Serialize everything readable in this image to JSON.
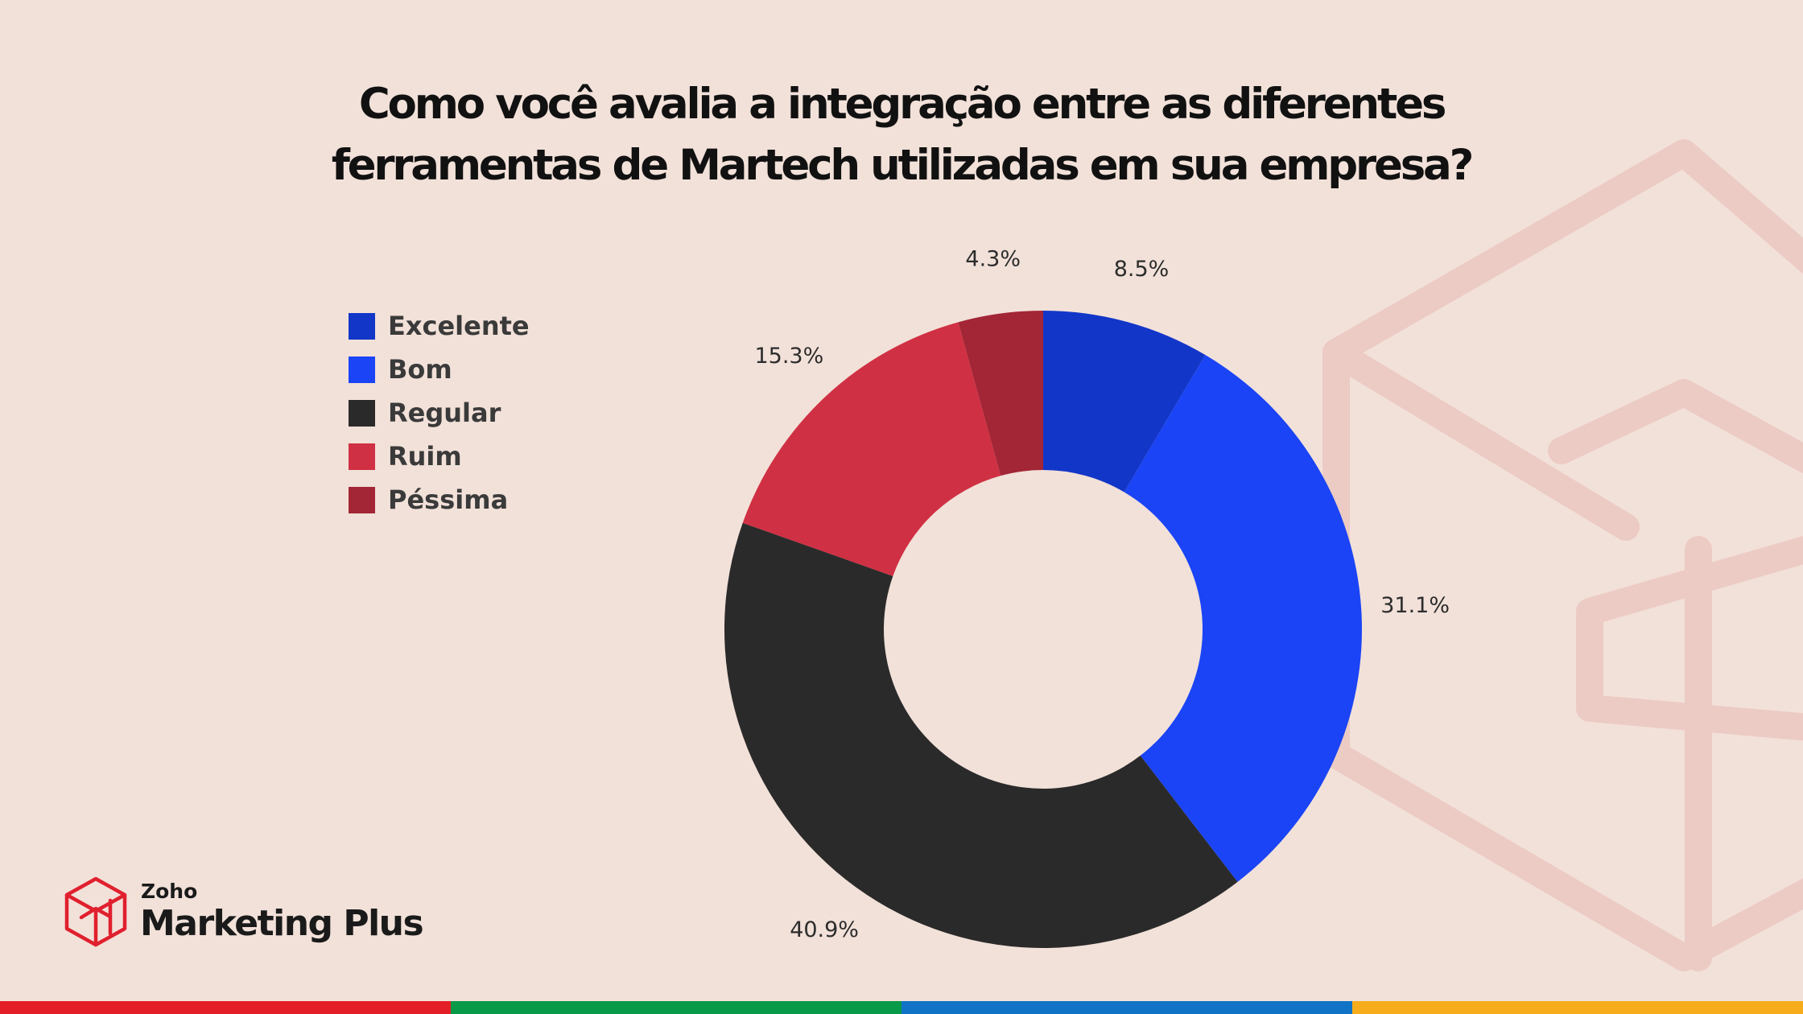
{
  "colors": {
    "background": "#f2e1d9",
    "excelente": "#1236c8",
    "bom": "#1a44f5",
    "regular": "#2a2a2a",
    "ruim": "#d03043",
    "pessima": "#a32636",
    "deco": "#eccbc4",
    "stripe_red": "#e41e26",
    "stripe_green": "#089949",
    "stripe_blue": "#1073c5",
    "stripe_yellow": "#f7ac1b"
  },
  "title": {
    "line1": "Como você avalia a integração entre as diferentes",
    "line2": "ferramentas de Martech utilizadas em sua empresa?"
  },
  "chart_data": {
    "type": "pie",
    "variant": "donut",
    "title": "Como você avalia a integração entre as diferentes ferramentas de Martech utilizadas em sua empresa?",
    "legend_position": "left",
    "slices": [
      {
        "label": "Excelente",
        "value": 8.5,
        "display": "8.5%",
        "color": "#1236c8"
      },
      {
        "label": "Bom",
        "value": 31.1,
        "display": "31.1%",
        "color": "#1a44f5"
      },
      {
        "label": "Regular",
        "value": 40.9,
        "display": "40.9%",
        "color": "#2a2a2a"
      },
      {
        "label": "Ruim",
        "value": 15.3,
        "display": "15.3%",
        "color": "#d03043"
      },
      {
        "label": "Péssima",
        "value": 4.3,
        "display": "4.3%",
        "color": "#a32636"
      }
    ]
  },
  "brand": {
    "small": "Zoho",
    "big": "Marketing Plus",
    "logo_icon": "box-icon"
  }
}
